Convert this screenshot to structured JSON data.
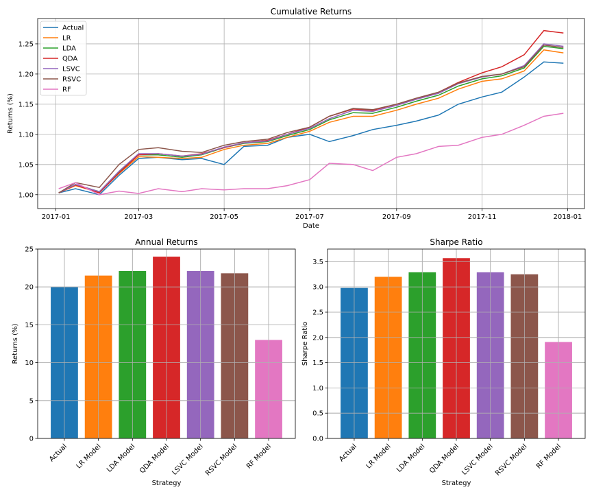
{
  "chart_data": [
    {
      "type": "line",
      "title": "Cumulative Returns",
      "xlabel": "Date",
      "ylabel": "Returns (%)",
      "x_ticks": [
        "2017-01",
        "2017-03",
        "2017-05",
        "2017-07",
        "2017-09",
        "2017-11",
        "2018-01"
      ],
      "x_range": [
        "2016-12-19",
        "2018-01-13"
      ],
      "ylim": [
        0.977,
        1.292
      ],
      "y_ticks": [
        1.0,
        1.05,
        1.1,
        1.15,
        1.2,
        1.25
      ],
      "grid": true,
      "legend": "top-left",
      "x": [
        "2017-01-03",
        "2017-01-15",
        "2017-02-01",
        "2017-02-15",
        "2017-03-01",
        "2017-03-15",
        "2017-04-01",
        "2017-04-15",
        "2017-05-01",
        "2017-05-15",
        "2017-06-01",
        "2017-06-15",
        "2017-07-01",
        "2017-07-15",
        "2017-08-01",
        "2017-08-15",
        "2017-09-01",
        "2017-09-15",
        "2017-10-01",
        "2017-10-15",
        "2017-11-01",
        "2017-11-15",
        "2017-12-01",
        "2017-12-15",
        "2017-12-29"
      ],
      "series": [
        {
          "name": "Actual",
          "color": "#1f77b4",
          "values": [
            1.003,
            1.01,
            1.0,
            1.032,
            1.06,
            1.062,
            1.058,
            1.06,
            1.05,
            1.08,
            1.082,
            1.095,
            1.1,
            1.088,
            1.098,
            1.108,
            1.115,
            1.122,
            1.132,
            1.15,
            1.162,
            1.17,
            1.195,
            1.22,
            1.218
          ]
        },
        {
          "name": "LR",
          "color": "#ff7f0e",
          "values": [
            1.003,
            1.015,
            1.004,
            1.035,
            1.063,
            1.062,
            1.06,
            1.062,
            1.075,
            1.082,
            1.085,
            1.095,
            1.105,
            1.12,
            1.13,
            1.13,
            1.14,
            1.15,
            1.16,
            1.175,
            1.188,
            1.192,
            1.205,
            1.24,
            1.235
          ]
        },
        {
          "name": "LDA",
          "color": "#2ca02c",
          "values": [
            1.003,
            1.017,
            1.005,
            1.038,
            1.066,
            1.066,
            1.062,
            1.066,
            1.078,
            1.085,
            1.088,
            1.098,
            1.108,
            1.124,
            1.136,
            1.135,
            1.145,
            1.155,
            1.165,
            1.18,
            1.192,
            1.197,
            1.21,
            1.246,
            1.242
          ]
        },
        {
          "name": "QDA",
          "color": "#d62728",
          "values": [
            1.003,
            1.016,
            1.003,
            1.036,
            1.066,
            1.068,
            1.064,
            1.068,
            1.078,
            1.086,
            1.09,
            1.1,
            1.112,
            1.13,
            1.142,
            1.14,
            1.15,
            1.158,
            1.17,
            1.186,
            1.202,
            1.212,
            1.232,
            1.272,
            1.268
          ]
        },
        {
          "name": "LSVC",
          "color": "#9467bd",
          "values": [
            1.003,
            1.017,
            1.005,
            1.039,
            1.068,
            1.068,
            1.064,
            1.067,
            1.079,
            1.086,
            1.089,
            1.1,
            1.11,
            1.126,
            1.14,
            1.138,
            1.148,
            1.158,
            1.168,
            1.184,
            1.195,
            1.2,
            1.214,
            1.25,
            1.246
          ]
        },
        {
          "name": "RSVC",
          "color": "#8c564b",
          "values": [
            1.003,
            1.02,
            1.012,
            1.05,
            1.075,
            1.078,
            1.072,
            1.07,
            1.082,
            1.088,
            1.092,
            1.103,
            1.112,
            1.13,
            1.143,
            1.141,
            1.15,
            1.16,
            1.17,
            1.185,
            1.196,
            1.2,
            1.212,
            1.248,
            1.244
          ]
        },
        {
          "name": "RF",
          "color": "#e377c2",
          "values": [
            1.01,
            1.02,
            1.0,
            1.006,
            1.002,
            1.01,
            1.005,
            1.01,
            1.008,
            1.01,
            1.01,
            1.015,
            1.025,
            1.052,
            1.05,
            1.04,
            1.062,
            1.068,
            1.08,
            1.082,
            1.095,
            1.1,
            1.115,
            1.13,
            1.135
          ]
        }
      ]
    },
    {
      "type": "bar",
      "title": "Annual Returns",
      "xlabel": "Strategy",
      "ylabel": "Returns (%)",
      "categories": [
        "Actual",
        "LR Model",
        "LDA Model",
        "QDA Model",
        "LSVC Model",
        "RSVC Model",
        "RF Model"
      ],
      "values": [
        20.0,
        21.5,
        22.1,
        24.0,
        22.1,
        21.8,
        13.0
      ],
      "colors": [
        "#1f77b4",
        "#ff7f0e",
        "#2ca02c",
        "#d62728",
        "#9467bd",
        "#8c564b",
        "#e377c2"
      ],
      "ylim": [
        0,
        25
      ],
      "y_ticks": [
        0,
        5,
        10,
        15,
        20,
        25
      ],
      "grid": true
    },
    {
      "type": "bar",
      "title": "Sharpe Ratio",
      "xlabel": "Strategy",
      "ylabel": "Sharpe Ratio",
      "categories": [
        "Actual",
        "LR Model",
        "LDA Model",
        "QDA Model",
        "LSVC Model",
        "RSVC Model",
        "RF Model"
      ],
      "values": [
        2.98,
        3.2,
        3.29,
        3.57,
        3.29,
        3.25,
        1.91
      ],
      "colors": [
        "#1f77b4",
        "#ff7f0e",
        "#2ca02c",
        "#d62728",
        "#9467bd",
        "#8c564b",
        "#e377c2"
      ],
      "ylim": [
        0,
        3.75
      ],
      "y_ticks": [
        0.0,
        0.5,
        1.0,
        1.5,
        2.0,
        2.5,
        3.0,
        3.5
      ],
      "y_tick_labels": [
        "0.0",
        "0.5",
        "1.0",
        "1.5",
        "2.0",
        "2.5",
        "3.0",
        "3.5"
      ],
      "grid": true
    }
  ]
}
